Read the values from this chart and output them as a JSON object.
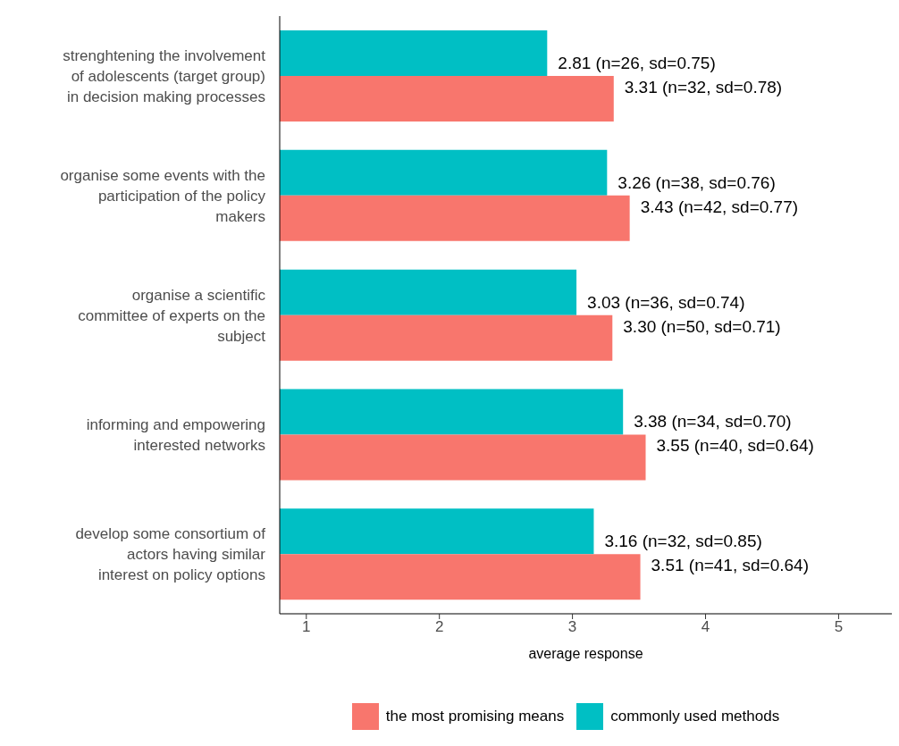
{
  "chart_data": {
    "type": "bar",
    "orientation": "horizontal",
    "xlabel": "average response",
    "categories": [
      "strenghtening the involvement of adolescents (target group) in decision making processes",
      "organise some events with the participation of the policy makers",
      "organise a scientific committee of experts on the subject",
      "informing and empowering interested networks",
      "develop some consortium of actors having similar interest on policy options"
    ],
    "series": [
      {
        "name": "the most promising means",
        "color": "#f8766d",
        "values": [
          3.31,
          3.43,
          3.3,
          3.55,
          3.51
        ],
        "value_labels": [
          "3.31 (n=32, sd=0.78)",
          "3.43 (n=42, sd=0.77)",
          "3.30 (n=50, sd=0.71)",
          "3.55 (n=40, sd=0.64)",
          "3.51 (n=41, sd=0.64)"
        ]
      },
      {
        "name": "commonly used methods",
        "color": "#00bfc4",
        "values": [
          2.81,
          3.26,
          3.03,
          3.38,
          3.16
        ],
        "value_labels": [
          "2.81 (n=26, sd=0.75)",
          "3.26 (n=38, sd=0.76)",
          "3.03 (n=36, sd=0.74)",
          "3.38 (n=34, sd=0.70)",
          "3.16 (n=32, sd=0.85)"
        ]
      }
    ],
    "xlim": [
      0.8,
      5.4
    ],
    "xticks": [
      1,
      2,
      3,
      4,
      5
    ],
    "grid": false,
    "legend": "bottom"
  }
}
